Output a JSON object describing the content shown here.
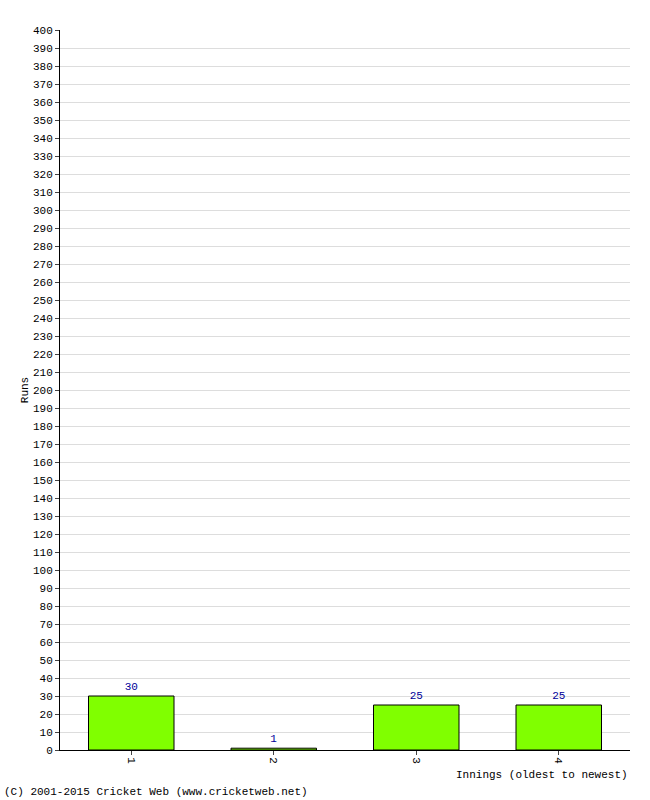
{
  "chart_data": {
    "type": "bar",
    "categories": [
      "1",
      "2",
      "3",
      "4"
    ],
    "values": [
      30,
      1,
      25,
      25
    ],
    "color": "#80ff00",
    "y_label": "Runs",
    "x_label": "Innings (oldest to newest)",
    "annotations": [
      "(C) 2001-2015 Cricket Web (www.cricketweb.net)"
    ],
    "ylim": [
      0,
      400
    ],
    "yticks": [
      0,
      10,
      20,
      30,
      40,
      50,
      60,
      70,
      80,
      90,
      100,
      110,
      120,
      130,
      140,
      150,
      160,
      170,
      180,
      190,
      200,
      210,
      220,
      230,
      240,
      250,
      260,
      270,
      280,
      290,
      300,
      310,
      320,
      330,
      340,
      350,
      360,
      370,
      380,
      390,
      400
    ],
    "grid": true,
    "data_labels": true
  }
}
